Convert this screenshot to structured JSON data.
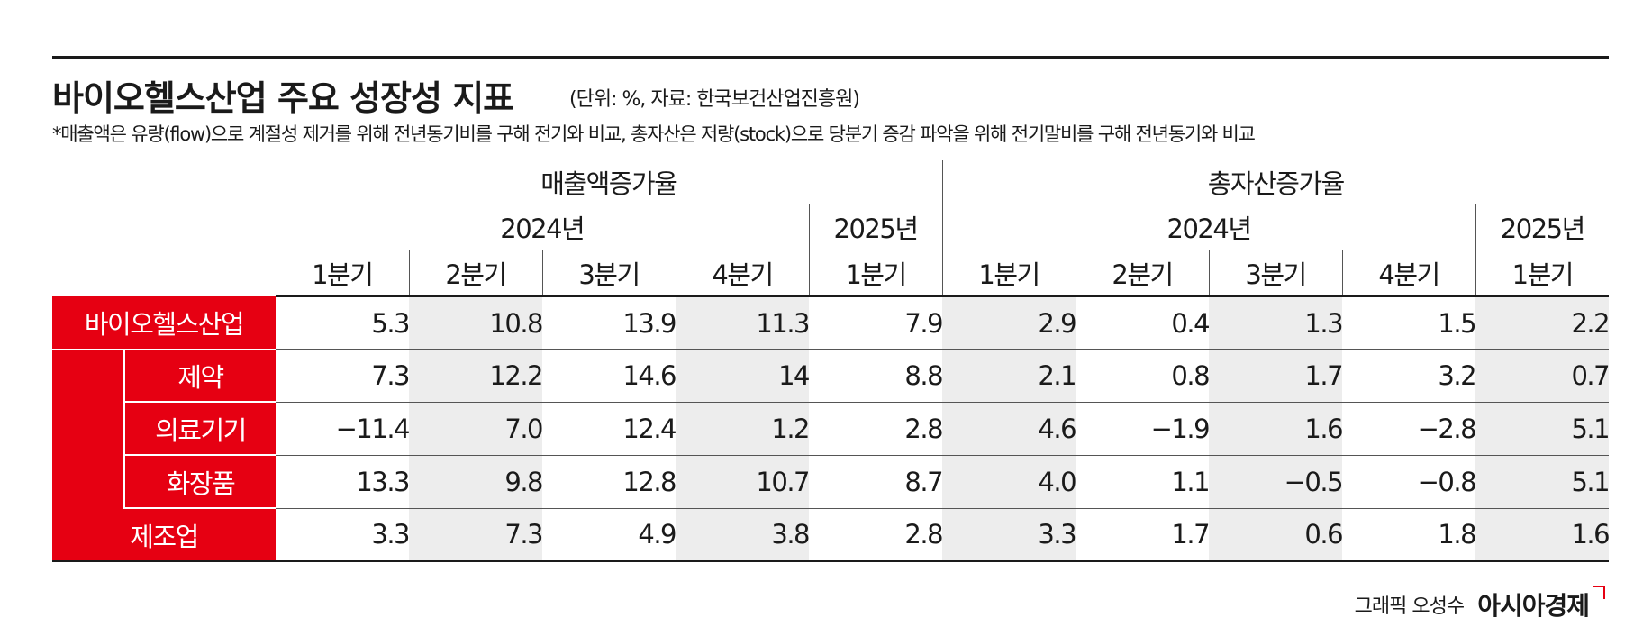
{
  "title": "바이오헬스산업 주요 성장성 지표",
  "unit_source": "(단위: %, 자료: 한국보건산업진흥원)",
  "note": "*매출액은 유량(flow)으로 계절성 제거를 위해 전년동기비를 구해 전기와 비교, 총자산은 저량(stock)으로 당분기 증감 파악을 위해 전기말비를 구해 전년동기와 비교",
  "headers": {
    "groups": [
      "매출액증가율",
      "총자산증가율"
    ],
    "years": [
      "2024년",
      "2025년",
      "2024년",
      "2025년"
    ],
    "quarters": [
      "1분기",
      "2분기",
      "3분기",
      "4분기",
      "1분기",
      "1분기",
      "2분기",
      "3분기",
      "4분기",
      "1분기"
    ]
  },
  "rows": [
    {
      "label": "바이오헬스산업",
      "values": [
        "5.3",
        "10.8",
        "13.9",
        "11.3",
        "7.9",
        "2.9",
        "0.4",
        "1.3",
        "1.5",
        "2.2"
      ]
    },
    {
      "label": "제약",
      "values": [
        "7.3",
        "12.2",
        "14.6",
        "14",
        "8.8",
        "2.1",
        "0.8",
        "1.7",
        "3.2",
        "0.7"
      ]
    },
    {
      "label": "의료기기",
      "values": [
        "−11.4",
        "7.0",
        "12.4",
        "1.2",
        "2.8",
        "4.6",
        "−1.9",
        "1.6",
        "−2.8",
        "5.1"
      ]
    },
    {
      "label": "화장품",
      "values": [
        "13.3",
        "9.8",
        "12.8",
        "10.7",
        "8.7",
        "4.0",
        "1.1",
        "−0.5",
        "−0.8",
        "5.1"
      ]
    },
    {
      "label": "제조업",
      "values": [
        "3.3",
        "7.3",
        "4.9",
        "3.8",
        "2.8",
        "3.3",
        "1.7",
        "0.6",
        "1.8",
        "1.6"
      ]
    }
  ],
  "credit": {
    "text": "그래픽 오성수",
    "logo": "아시아경제"
  },
  "colors": {
    "accent": "#e60012",
    "shade": "#ededed"
  },
  "chart_data": {
    "type": "table",
    "title": "바이오헬스산업 주요 성장성 지표",
    "columns": [
      "매출액증가율 2024년 1분기",
      "매출액증가율 2024년 2분기",
      "매출액증가율 2024년 3분기",
      "매출액증가율 2024년 4분기",
      "매출액증가율 2025년 1분기",
      "총자산증가율 2024년 1분기",
      "총자산증가율 2024년 2분기",
      "총자산증가율 2024년 3분기",
      "총자산증가율 2024년 4분기",
      "총자산증가율 2025년 1분기"
    ],
    "series": [
      {
        "name": "바이오헬스산업",
        "values": [
          5.3,
          10.8,
          13.9,
          11.3,
          7.9,
          2.9,
          0.4,
          1.3,
          1.5,
          2.2
        ]
      },
      {
        "name": "제약",
        "values": [
          7.3,
          12.2,
          14.6,
          14,
          8.8,
          2.1,
          0.8,
          1.7,
          3.2,
          0.7
        ]
      },
      {
        "name": "의료기기",
        "values": [
          -11.4,
          7.0,
          12.4,
          1.2,
          2.8,
          4.6,
          -1.9,
          1.6,
          -2.8,
          5.1
        ]
      },
      {
        "name": "화장품",
        "values": [
          13.3,
          9.8,
          12.8,
          10.7,
          8.7,
          4.0,
          1.1,
          -0.5,
          -0.8,
          5.1
        ]
      },
      {
        "name": "제조업",
        "values": [
          3.3,
          7.3,
          4.9,
          3.8,
          2.8,
          3.3,
          1.7,
          0.6,
          1.8,
          1.6
        ]
      }
    ]
  }
}
